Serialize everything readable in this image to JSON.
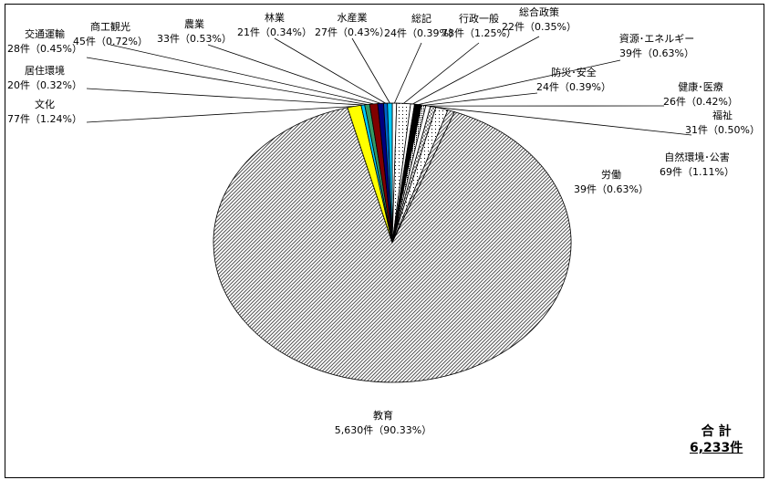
{
  "chart_data": {
    "type": "pie",
    "total_label": "合 計",
    "total_value": "6,233件",
    "slices": [
      {
        "name": "総記",
        "count": "24件",
        "pct": 0.39,
        "text": "24件（0.39%）",
        "color": "#ffffff",
        "pattern": "white"
      },
      {
        "name": "行政一般",
        "count": "78件",
        "pct": 1.25,
        "text": "78件（1.25%）",
        "color": "#000000",
        "pattern": "dots"
      },
      {
        "name": "総合政策",
        "count": "22件",
        "pct": 0.35,
        "text": "22件（0.35%）",
        "color": "#ffffff",
        "pattern": "white"
      },
      {
        "name": "資源･エネルギー",
        "count": "39件",
        "pct": 0.63,
        "text": "39件（0.63%）",
        "color": "#000000",
        "pattern": "solid"
      },
      {
        "name": "防災･安全",
        "count": "24件",
        "pct": 0.39,
        "text": "24件（0.39%）",
        "color": "#000000",
        "pattern": "dense"
      },
      {
        "name": "健康･医療",
        "count": "26件",
        "pct": 0.42,
        "text": "26件（0.42%）",
        "color": "#ffffff",
        "pattern": "white"
      },
      {
        "name": "福祉",
        "count": "31件",
        "pct": 0.5,
        "text": "31件（0.50%）",
        "color": "#000000",
        "pattern": "checker"
      },
      {
        "name": "自然環境･公害",
        "count": "69件",
        "pct": 1.11,
        "text": "69件（1.11%）",
        "color": "#000000",
        "pattern": "dots"
      },
      {
        "name": "労働",
        "count": "39件",
        "pct": 0.63,
        "text": "39件（0.63%）",
        "color": "#000000",
        "pattern": "hatch"
      },
      {
        "name": "教育",
        "count": "5,630件",
        "pct": 90.33,
        "text": "5,630件（90.33%）",
        "color": "#777777",
        "pattern": "hatch"
      },
      {
        "name": "文化",
        "count": "77件",
        "pct": 1.24,
        "text": "77件（1.24%）",
        "color": "#ffff00",
        "pattern": "solid"
      },
      {
        "name": "居住環境",
        "count": "20件",
        "pct": 0.32,
        "text": "20件（0.32%）",
        "color": "#00ccff",
        "pattern": "solid"
      },
      {
        "name": "交通運輸",
        "count": "28件",
        "pct": 0.45,
        "text": "28件（0.45%）",
        "color": "#339966",
        "pattern": "solid"
      },
      {
        "name": "商工観光",
        "count": "45件",
        "pct": 0.72,
        "text": "45件（0.72%）",
        "color": "#800000",
        "pattern": "solid"
      },
      {
        "name": "農業",
        "count": "33件",
        "pct": 0.53,
        "text": "33件（0.53%）",
        "color": "#000080",
        "pattern": "solid"
      },
      {
        "name": "林業",
        "count": "21件",
        "pct": 0.34,
        "text": "21件（0.34%）",
        "color": "#0066cc",
        "pattern": "solid"
      },
      {
        "name": "水産業",
        "count": "27件",
        "pct": 0.43,
        "text": "27件（0.43%）",
        "color": "#00ccff",
        "pattern": "solid"
      }
    ]
  }
}
